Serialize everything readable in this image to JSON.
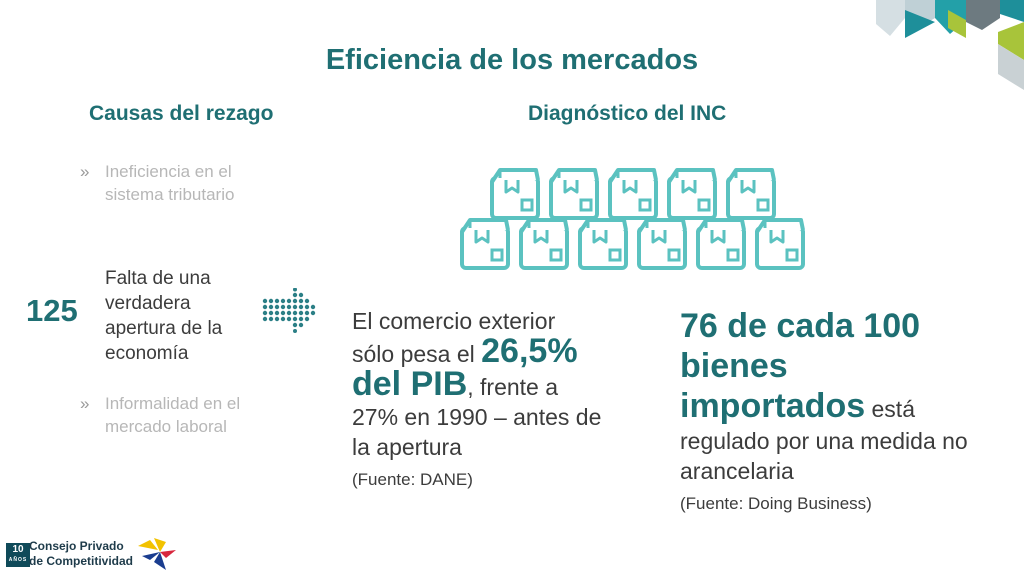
{
  "title": "Eficiencia de los mercados",
  "left_column": {
    "heading": "Causas del rezago",
    "bullets": [
      {
        "marker": "»",
        "text": "Ineficiencia en el sistema tributario"
      },
      {
        "marker": "»",
        "text": "Informalidad en el mercado laboral"
      }
    ],
    "highlighted": {
      "rank": "125",
      "text": "Falta de una verdadera apertura de la economía"
    }
  },
  "right_column": {
    "heading": "Diagnóstico del INC",
    "illustration_icon": "boxes-icon",
    "stat_left": {
      "text_1": "El comercio exterior sólo pesa el ",
      "highlight": "26,5% del PIB",
      "text_2": ", frente a 27% en 1990 – antes de la apertura",
      "source": "(Fuente: DANE)"
    },
    "stat_right": {
      "highlight": "76 de cada 100 bienes importados",
      "text": " está regulado por una medida no arancelaria",
      "source": "(Fuente: Doing Business)"
    }
  },
  "footer": {
    "badge_number": "10",
    "badge_sub": "AÑOS",
    "org_line1": "Consejo Privado",
    "org_line2": "de Competitividad"
  },
  "colors": {
    "accent": "#1f6f73",
    "box_stroke": "#5bc2c0",
    "corner_teal": "#1e8f9a",
    "corner_lime": "#a8c43a"
  }
}
